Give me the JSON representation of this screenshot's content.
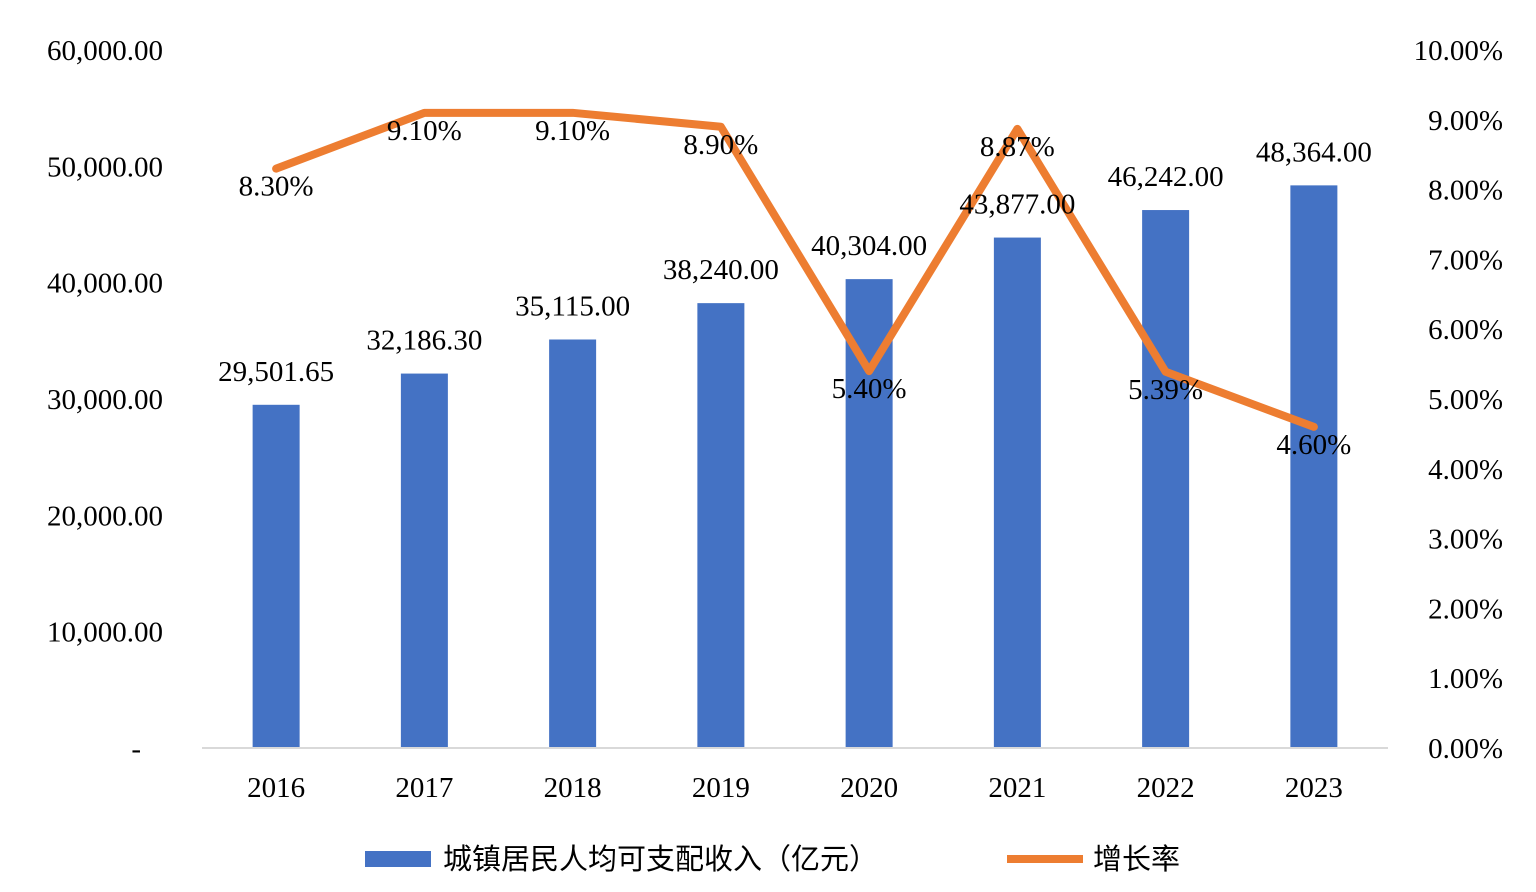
{
  "chart_data": {
    "type": "bar+line",
    "categories": [
      "2016",
      "2017",
      "2018",
      "2019",
      "2020",
      "2021",
      "2022",
      "2023"
    ],
    "series": [
      {
        "name": "城镇居民人均可支配收入（亿元）",
        "type": "bar",
        "axis": "left",
        "color": "#4472C4",
        "values": [
          29501.65,
          32186.3,
          35115.0,
          38240.0,
          40304.0,
          43877.0,
          46242.0,
          48364.0
        ],
        "labels": [
          "29,501.65",
          "32,186.30",
          "35,115.00",
          "38,240.00",
          "40,304.00",
          "43,877.00",
          "46,242.00",
          "48,364.00"
        ]
      },
      {
        "name": "增长率",
        "type": "line",
        "axis": "right",
        "color": "#ED7D31",
        "values": [
          8.3,
          9.1,
          9.1,
          8.9,
          5.4,
          8.87,
          5.39,
          4.6
        ],
        "labels": [
          "8.30%",
          "9.10%",
          "9.10%",
          "8.90%",
          "5.40%",
          "8.87%",
          "5.39%",
          "4.60%"
        ]
      }
    ],
    "y_left": {
      "min": 0,
      "max": 60000,
      "ticks": [
        0,
        10000,
        20000,
        30000,
        40000,
        50000,
        60000
      ],
      "tick_labels": [
        "-",
        "10,000.00",
        "20,000.00",
        "30,000.00",
        "40,000.00",
        "50,000.00",
        "60,000.00"
      ]
    },
    "y_right": {
      "min": 0,
      "max": 10,
      "ticks": [
        0,
        1,
        2,
        3,
        4,
        5,
        6,
        7,
        8,
        9,
        10
      ],
      "tick_labels": [
        "0.00%",
        "1.00%",
        "2.00%",
        "3.00%",
        "4.00%",
        "5.00%",
        "6.00%",
        "7.00%",
        "8.00%",
        "9.00%",
        "10.00%"
      ]
    },
    "grid": false,
    "legend_position": "bottom"
  }
}
